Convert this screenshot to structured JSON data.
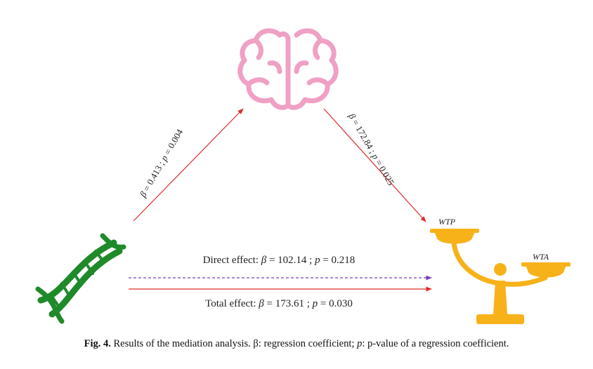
{
  "diagram": {
    "paths": {
      "a": {
        "beta": "0.413",
        "p": "0.004"
      },
      "b": {
        "beta": "172.84",
        "p": "0.025"
      },
      "direct": {
        "label": "Direct effect:",
        "beta": "102.14",
        "p": "0.218"
      },
      "total": {
        "label": "Total effect:",
        "beta": "173.61",
        "p": "0.030"
      }
    },
    "nodes": {
      "wtp": "WTP",
      "wta": "WTA"
    },
    "symbols": {
      "beta": "β",
      "p": "p",
      "eq": " = ",
      "sep": " ; "
    },
    "colors": {
      "arrow_red": "#e02a2a",
      "arrow_direct": "#7a3fb0",
      "brain": "#f0a0c4",
      "dna": "#1f8a2a",
      "scale": "#f7b21a"
    }
  },
  "caption": {
    "fig_no": "Fig. 4.",
    "text_1": " Results of the mediation analysis. β: regression coefficient; ",
    "p_italic": "p",
    "text_2": ": p-value of a regression coefficient."
  }
}
